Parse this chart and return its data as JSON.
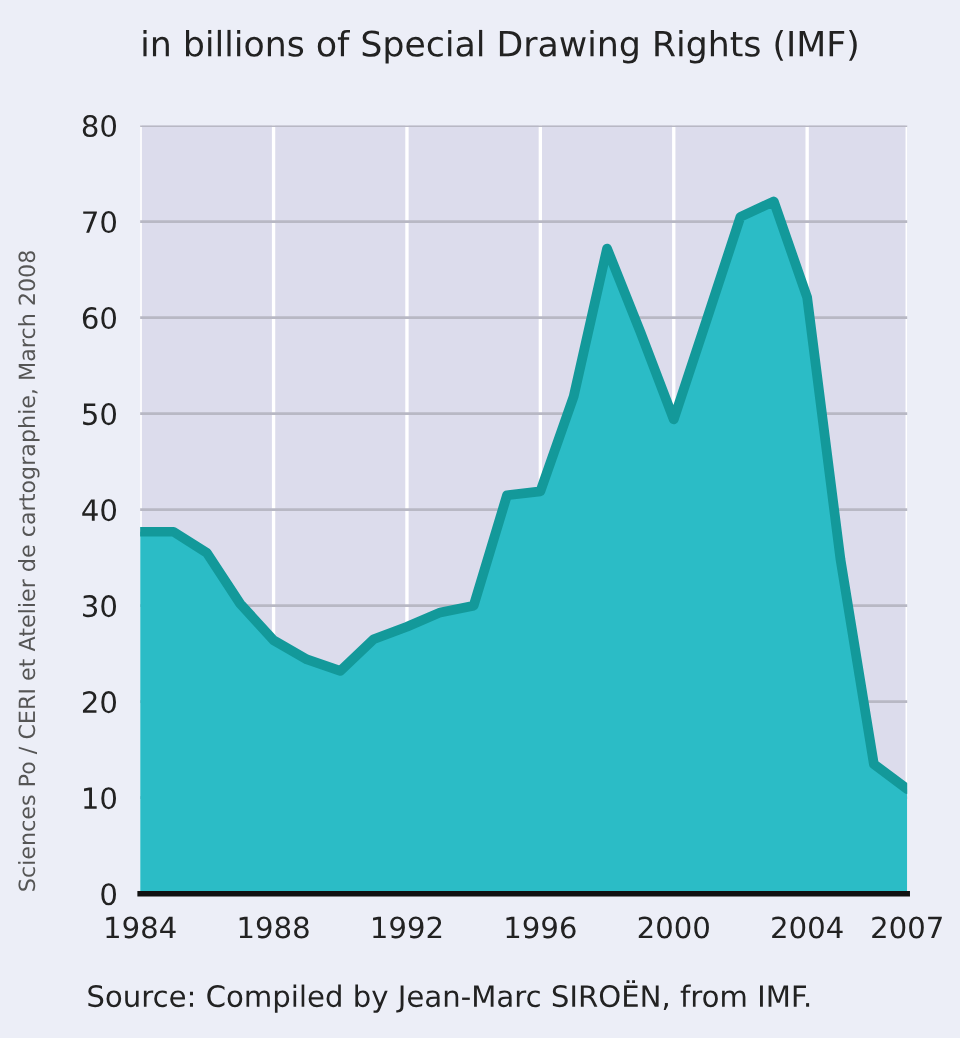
{
  "chart_data": {
    "type": "area",
    "title": "in billions of Special Drawing Rights (IMF)",
    "x": [
      1984,
      1985,
      1986,
      1987,
      1988,
      1989,
      1990,
      1991,
      1992,
      1993,
      1994,
      1995,
      1996,
      1997,
      1998,
      1999,
      2000,
      2001,
      2002,
      2003,
      2004,
      2005,
      2006,
      2007
    ],
    "series": [
      {
        "color": "#2bbcc6",
        "values": [
          37.7,
          37.7,
          35.5,
          30.2,
          26.4,
          24.4,
          23.2,
          26.5,
          27.8,
          29.3,
          30.0,
          41.5,
          41.9,
          51.8,
          67.2,
          58.5,
          49.4,
          59.9,
          70.5,
          72.1,
          62.1,
          34.8,
          13.5,
          10.9
        ]
      }
    ],
    "xlim": [
      1984,
      2007
    ],
    "xticks": [
      1984,
      1988,
      1992,
      1996,
      2000,
      2004,
      2007
    ],
    "ylim": [
      0,
      80
    ],
    "yticks": [
      0,
      10,
      20,
      30,
      40,
      50,
      60,
      70,
      80
    ],
    "grid": true,
    "marker": "none",
    "line_style": "solid",
    "annotations": [
      "Source: Compiled by Jean-Marc SIROËN, from IMF.",
      "Sciences Po / CERI et Atelier de cartographie, March 2008"
    ]
  }
}
